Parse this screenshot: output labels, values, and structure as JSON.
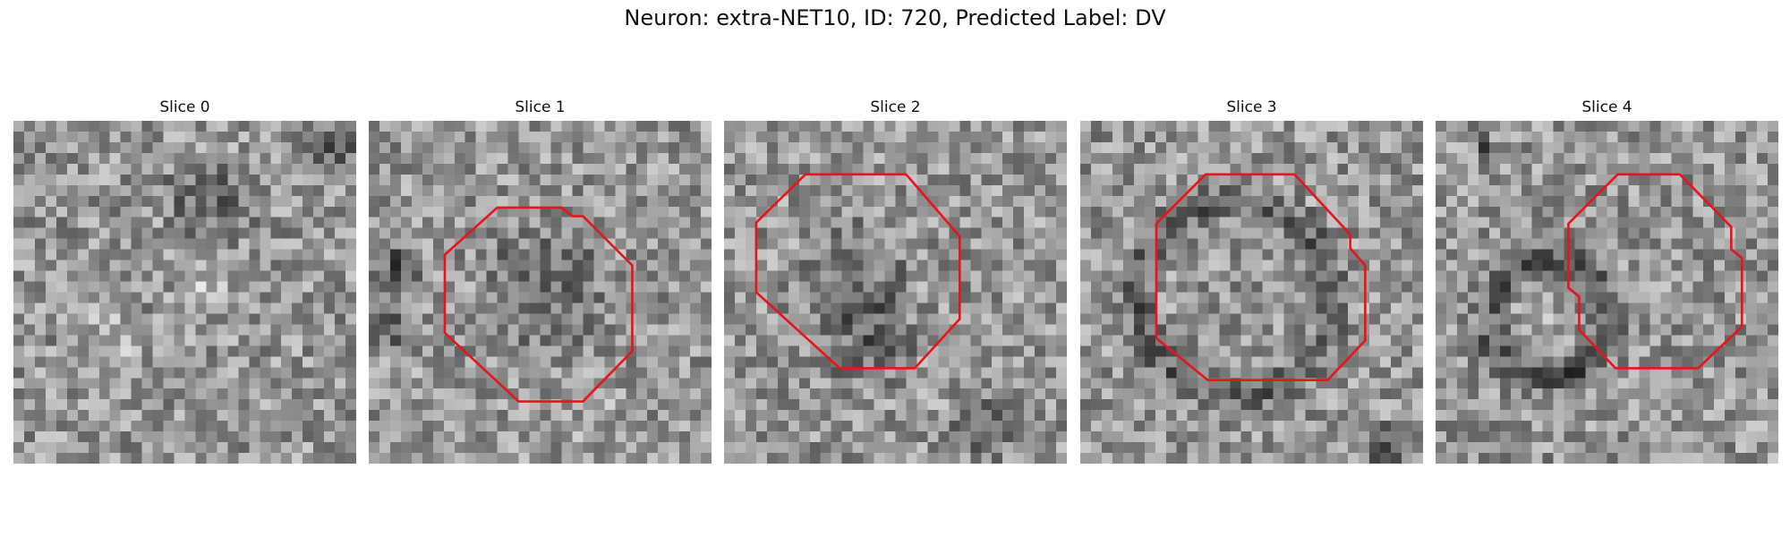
{
  "figure": {
    "title": "Neuron: extra-NET10, ID: 720, Predicted Label: DV"
  },
  "panels": [
    {
      "title": "Slice 0",
      "has_roi": false
    },
    {
      "title": "Slice 1",
      "has_roi": true
    },
    {
      "title": "Slice 2",
      "has_roi": true
    },
    {
      "title": "Slice 3",
      "has_roi": true
    },
    {
      "title": "Slice 4",
      "has_roi": true
    }
  ],
  "colors": {
    "roi_outline": "#e8141b",
    "colormap": "gray"
  }
}
